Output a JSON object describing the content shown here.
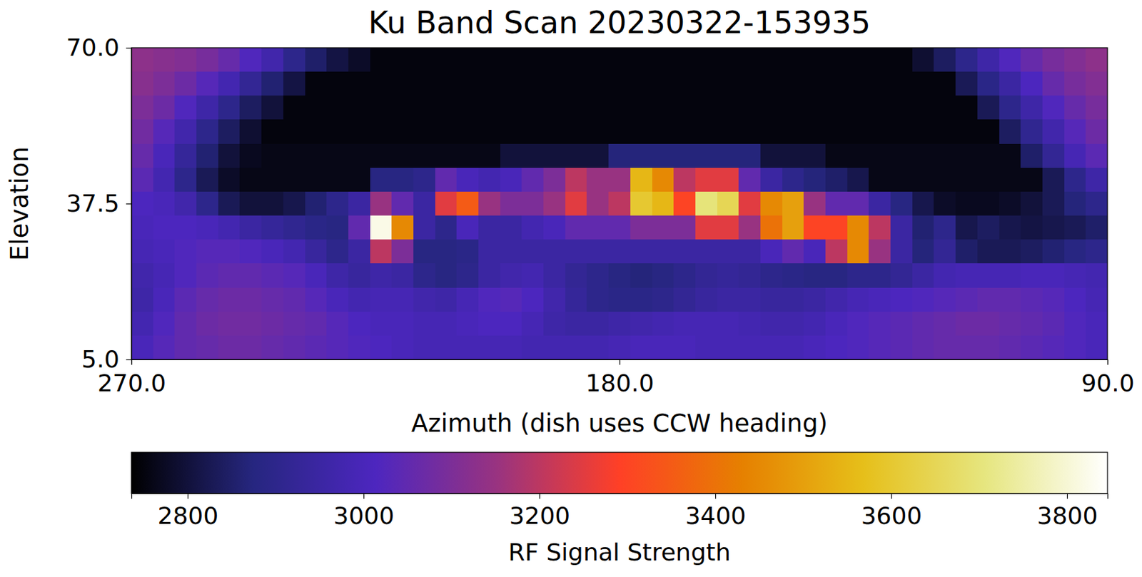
{
  "chart_data": {
    "type": "heatmap",
    "title": "Ku Band Scan 20230322-153935",
    "x_label": "Azimuth (dish uses CCW heading)",
    "y_label": "Elevation",
    "x": [
      268,
      264,
      260,
      256,
      252,
      248,
      244,
      240,
      236,
      232,
      228,
      224,
      220,
      216,
      212,
      208,
      204,
      200,
      196,
      192,
      188,
      184,
      180,
      176,
      172,
      168,
      164,
      160,
      156,
      152,
      148,
      144,
      140,
      136,
      132,
      128,
      124,
      120,
      116,
      112,
      108,
      104,
      100,
      96,
      92
    ],
    "y": [
      67.5,
      62.5,
      57.5,
      52.5,
      47.5,
      42.5,
      37.5,
      32.5,
      27.5,
      22.5,
      17.5,
      12.5,
      7.5
    ],
    "values": [
      [
        3130,
        3120,
        3110,
        3090,
        3060,
        3020,
        2970,
        2900,
        2850,
        2810,
        2780,
        2750,
        2750,
        2750,
        2750,
        2750,
        2750,
        2750,
        2750,
        2750,
        2750,
        2750,
        2750,
        2750,
        2750,
        2750,
        2750,
        2750,
        2750,
        2750,
        2750,
        2750,
        2750,
        2750,
        2750,
        2750,
        2790,
        2840,
        2900,
        2960,
        3020,
        3060,
        3090,
        3110,
        3130
      ],
      [
        3120,
        3100,
        3070,
        3030,
        2980,
        2920,
        2860,
        2810,
        2750,
        2750,
        2750,
        2750,
        2750,
        2750,
        2750,
        2750,
        2750,
        2750,
        2750,
        2750,
        2750,
        2750,
        2750,
        2750,
        2750,
        2750,
        2750,
        2750,
        2750,
        2750,
        2750,
        2750,
        2750,
        2750,
        2750,
        2750,
        2750,
        2750,
        2830,
        2890,
        2950,
        3010,
        3060,
        3090,
        3110
      ],
      [
        3100,
        3070,
        3020,
        2960,
        2900,
        2840,
        2800,
        2750,
        2750,
        2750,
        2750,
        2750,
        2750,
        2750,
        2750,
        2750,
        2750,
        2750,
        2750,
        2750,
        2750,
        2750,
        2750,
        2750,
        2750,
        2750,
        2750,
        2750,
        2750,
        2750,
        2750,
        2750,
        2750,
        2750,
        2750,
        2750,
        2750,
        2750,
        2750,
        2830,
        2900,
        2960,
        3020,
        3060,
        3090
      ],
      [
        3080,
        3030,
        2970,
        2900,
        2840,
        2790,
        2750,
        2750,
        2750,
        2750,
        2750,
        2750,
        2750,
        2750,
        2750,
        2750,
        2750,
        2750,
        2750,
        2750,
        2750,
        2750,
        2750,
        2750,
        2750,
        2750,
        2750,
        2750,
        2750,
        2750,
        2750,
        2750,
        2750,
        2750,
        2750,
        2750,
        2750,
        2750,
        2750,
        2750,
        2840,
        2910,
        2970,
        3030,
        3070
      ],
      [
        3060,
        3000,
        2930,
        2860,
        2800,
        2770,
        2760,
        2760,
        2760,
        2760,
        2760,
        2760,
        2760,
        2760,
        2760,
        2760,
        2760,
        2800,
        2800,
        2800,
        2800,
        2800,
        2870,
        2870,
        2870,
        2870,
        2870,
        2870,
        2870,
        2800,
        2800,
        2800,
        2760,
        2760,
        2760,
        2760,
        2760,
        2760,
        2760,
        2760,
        2760,
        2850,
        2920,
        2990,
        3040
      ],
      [
        3040,
        2980,
        2900,
        2830,
        2780,
        2760,
        2760,
        2760,
        2760,
        2760,
        2760,
        2880,
        2880,
        2900,
        3050,
        3000,
        2980,
        3000,
        3050,
        3100,
        3200,
        3150,
        3150,
        3550,
        3450,
        3200,
        3250,
        3250,
        3050,
        2950,
        2900,
        2870,
        2850,
        2820,
        2760,
        2760,
        2760,
        2760,
        2760,
        2760,
        2760,
        2760,
        2830,
        2900,
        2960
      ],
      [
        3010,
        3000,
        2970,
        2900,
        2830,
        2800,
        2800,
        2820,
        2860,
        2900,
        2950,
        3150,
        3050,
        2950,
        3250,
        3350,
        3150,
        3100,
        3100,
        3150,
        3250,
        3150,
        3200,
        3600,
        3550,
        3300,
        3700,
        3650,
        3250,
        3450,
        3500,
        3150,
        3050,
        3050,
        2950,
        2880,
        2820,
        2780,
        2770,
        2770,
        2780,
        2800,
        2830,
        2870,
        2900
      ],
      [
        3000,
        3010,
        3010,
        3000,
        2980,
        2950,
        2930,
        2910,
        2890,
        2880,
        3050,
        3820,
        3450,
        2950,
        2900,
        3000,
        2950,
        2950,
        2980,
        3000,
        3050,
        3050,
        3050,
        3100,
        3100,
        3100,
        3250,
        3250,
        3150,
        3400,
        3500,
        3300,
        3300,
        3450,
        3200,
        2950,
        2860,
        2900,
        2820,
        2840,
        2820,
        2810,
        2820,
        2830,
        2850
      ],
      [
        2990,
        3000,
        3020,
        3030,
        3030,
        3020,
        3000,
        2980,
        2940,
        2900,
        2950,
        3200,
        3100,
        2880,
        2880,
        2890,
        2950,
        2950,
        2950,
        2950,
        2950,
        2950,
        2950,
        2950,
        2950,
        2950,
        2950,
        2950,
        2950,
        3000,
        3050,
        3000,
        3200,
        3450,
        3150,
        2950,
        2870,
        2920,
        2850,
        2830,
        2830,
        2840,
        2860,
        2880,
        2900
      ],
      [
        2970,
        2990,
        3020,
        3040,
        3050,
        3050,
        3040,
        3030,
        3000,
        2960,
        2940,
        2960,
        2950,
        2900,
        2880,
        2900,
        2950,
        2970,
        2980,
        2950,
        2920,
        2900,
        2880,
        2870,
        2880,
        2900,
        2920,
        2930,
        2920,
        2900,
        2890,
        2880,
        2880,
        2900,
        2900,
        2920,
        2950,
        2980,
        2990,
        2990,
        2990,
        3000,
        3000,
        2990,
        2980
      ],
      [
        2960,
        3000,
        3040,
        3060,
        3070,
        3070,
        3060,
        3050,
        3030,
        3000,
        2980,
        2990,
        2990,
        2970,
        2960,
        2990,
        3020,
        3030,
        3010,
        2970,
        2930,
        2900,
        2890,
        2890,
        2900,
        2920,
        2940,
        2950,
        2950,
        2940,
        2940,
        2950,
        2970,
        2990,
        3000,
        3010,
        3020,
        3030,
        3040,
        3050,
        3050,
        3040,
        3030,
        3010,
        2990
      ],
      [
        2980,
        3020,
        3050,
        3070,
        3080,
        3080,
        3070,
        3060,
        3050,
        3030,
        3010,
        3000,
        3000,
        2990,
        2990,
        3000,
        3010,
        3010,
        2990,
        2960,
        2950,
        2950,
        2960,
        2970,
        2980,
        2990,
        2990,
        2990,
        2980,
        2970,
        2970,
        2980,
        3000,
        3020,
        3030,
        3040,
        3050,
        3060,
        3070,
        3070,
        3060,
        3050,
        3040,
        3020,
        3000
      ],
      [
        3000,
        3030,
        3050,
        3060,
        3070,
        3070,
        3060,
        3050,
        3040,
        3030,
        3020,
        3010,
        3000,
        2990,
        2990,
        2990,
        2990,
        2990,
        2980,
        2980,
        2980,
        2980,
        2990,
        3000,
        3000,
        3000,
        2990,
        2990,
        2990,
        2990,
        2990,
        3000,
        3010,
        3020,
        3030,
        3040,
        3050,
        3060,
        3060,
        3060,
        3050,
        3040,
        3030,
        3020,
        3000
      ]
    ],
    "xlim": [
      270,
      90
    ],
    "ylim": [
      5,
      70
    ],
    "xticks": [
      {
        "value": 270,
        "label": "270.0"
      },
      {
        "value": 180,
        "label": "180.0"
      },
      {
        "value": 90,
        "label": "90.0"
      }
    ],
    "yticks": [
      {
        "value": 5,
        "label": "5.0"
      },
      37.5,
      {
        "value": 70,
        "label": "70.0"
      }
    ],
    "colorbar": {
      "label": "RF Signal Strength",
      "range": [
        2736,
        3846
      ],
      "ticks": [
        2800,
        3000,
        3200,
        3400,
        3600,
        3800
      ]
    }
  }
}
